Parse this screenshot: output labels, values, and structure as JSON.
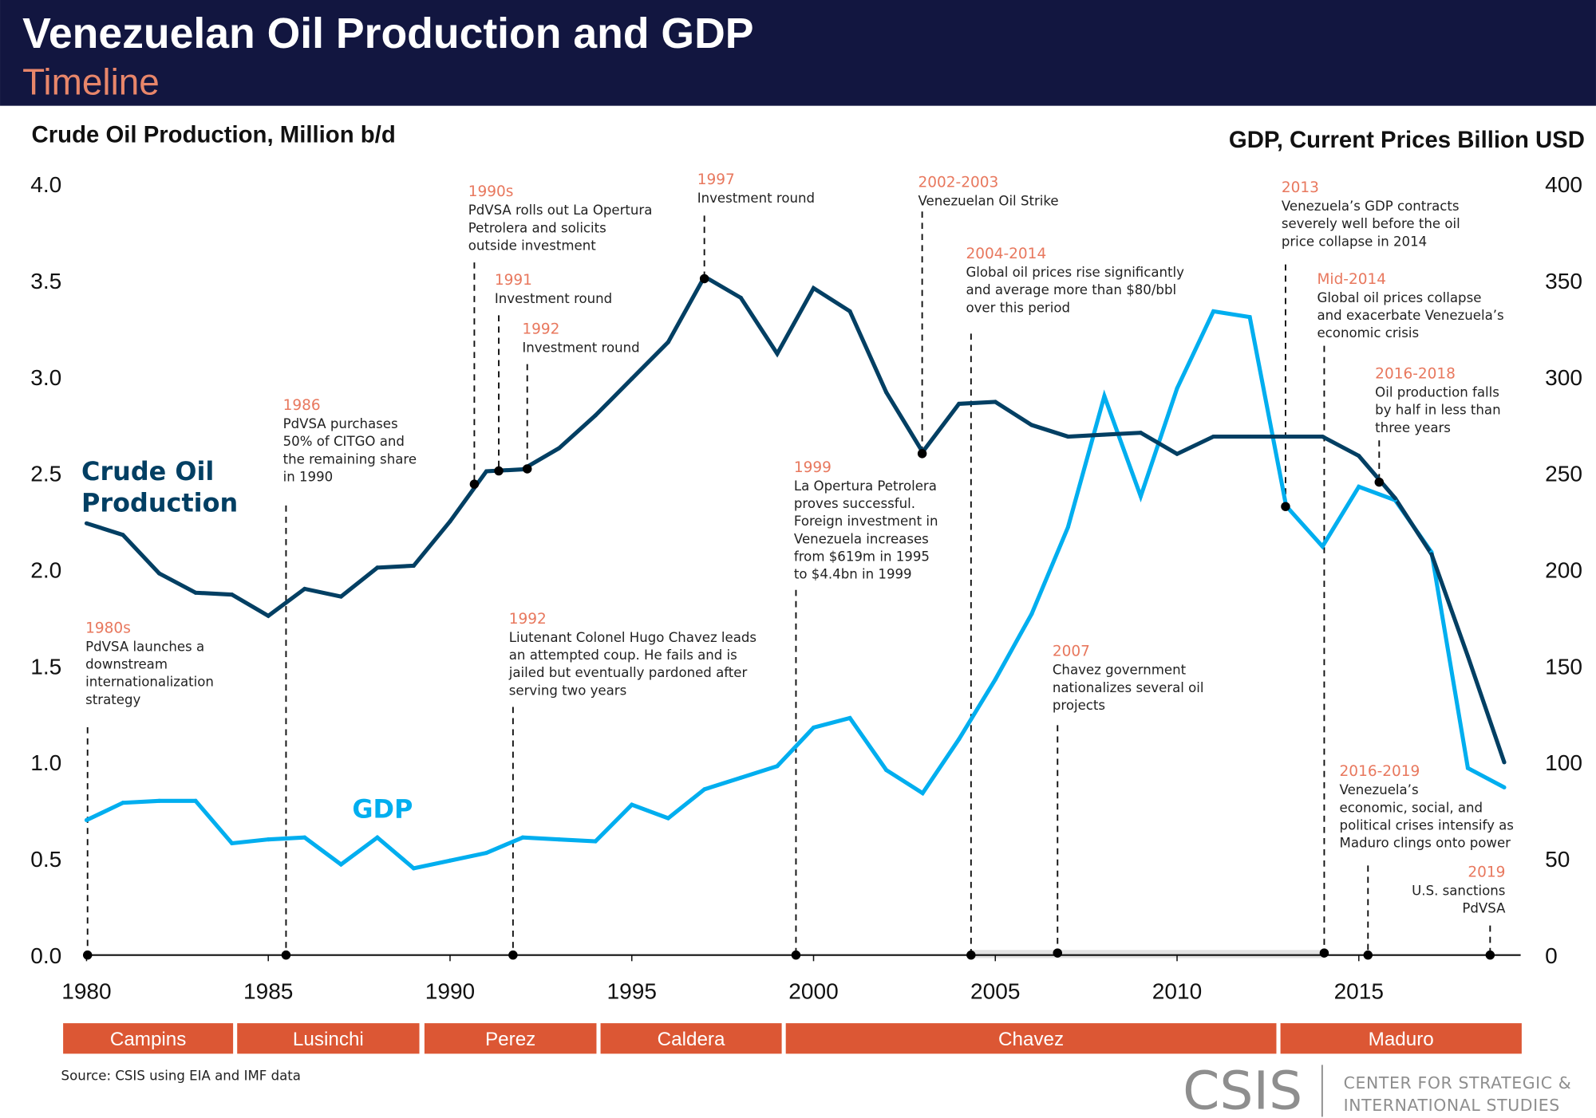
{
  "header": {
    "title": "Venezuelan Oil Production and GDP",
    "subtitle": "Timeline"
  },
  "colors": {
    "header_bg": "#121640",
    "subtitle": "#e8866a",
    "oil_series": "#023f63",
    "gdp_series": "#00aeef",
    "annotation_year": "#e8785e",
    "president_bar": "#dc5734",
    "period_band": "#e3e3e3"
  },
  "chart_data": {
    "type": "line",
    "left_axis_title": "Crude Oil Production, Million b/d",
    "right_axis_title": "GDP, Current Prices Billion USD",
    "x": [
      1980,
      1981,
      1982,
      1983,
      1984,
      1985,
      1986,
      1987,
      1988,
      1989,
      1990,
      1991,
      1992,
      1993,
      1994,
      1995,
      1996,
      1997,
      1998,
      1999,
      2000,
      2001,
      2002,
      2003,
      2004,
      2005,
      2006,
      2007,
      2008,
      2009,
      2010,
      2011,
      2012,
      2013,
      2014,
      2015,
      2016,
      2017,
      2018,
      2019
    ],
    "x_ticks": [
      "1980",
      "1985",
      "1990",
      "1995",
      "2000",
      "2005",
      "2010",
      "2015"
    ],
    "x_tick_values": [
      1980,
      1985,
      1990,
      1995,
      2000,
      2005,
      2010,
      2015
    ],
    "left_ticks": [
      "0.0",
      "0.5",
      "1.0",
      "1.5",
      "2.0",
      "2.5",
      "3.0",
      "3.5",
      "4.0"
    ],
    "right_ticks": [
      "0",
      "50",
      "100",
      "150",
      "200",
      "250",
      "300",
      "350",
      "400"
    ],
    "ylim_left": [
      0,
      4.0
    ],
    "ylim_right": [
      0,
      400
    ],
    "grid": false,
    "series": [
      {
        "name": "Crude Oil Production",
        "label": "Crude Oil Production",
        "axis": "left",
        "values": [
          2.24,
          2.18,
          1.98,
          1.88,
          1.87,
          1.76,
          1.9,
          1.86,
          2.01,
          2.02,
          2.25,
          2.51,
          2.52,
          2.63,
          2.8,
          2.99,
          3.18,
          3.52,
          3.41,
          3.12,
          3.46,
          3.34,
          2.92,
          2.61,
          2.86,
          2.87,
          2.75,
          2.69,
          2.7,
          2.71,
          2.6,
          2.69,
          2.69,
          2.69,
          2.69,
          2.59,
          2.37,
          2.08,
          1.55,
          1.0
        ]
      },
      {
        "name": "GDP",
        "label": "GDP",
        "axis": "right",
        "values": [
          70,
          79,
          80,
          80,
          58,
          60,
          61,
          47,
          61,
          45,
          49,
          53,
          61,
          60,
          59,
          78,
          71,
          86,
          92,
          98,
          118,
          123,
          96,
          84,
          112,
          143,
          177,
          222,
          290,
          238,
          294,
          334,
          331,
          233,
          212,
          243,
          236,
          209,
          97,
          87
        ]
      }
    ]
  },
  "annotations": [
    {
      "year": "1980s",
      "lines": [
        "PdVSA launches a",
        "downstream",
        "internationalization",
        "strategy"
      ]
    },
    {
      "year": "1986",
      "lines": [
        "PdVSA purchases",
        "50% of CITGO and",
        "the remaining share",
        "in 1990"
      ]
    },
    {
      "year": "1990s",
      "lines": [
        "PdVSA rolls out La Opertura",
        "Petrolera and solicits",
        "outside investment"
      ]
    },
    {
      "year": "1991",
      "lines": [
        "Investment round"
      ]
    },
    {
      "year": "1992",
      "lines": [
        "Investment round"
      ]
    },
    {
      "year": "1997",
      "lines": [
        "Investment round"
      ]
    },
    {
      "year": "1992",
      "lines": [
        "Liutenant Colonel Hugo Chavez leads",
        "an attempted coup. He fails and is",
        "jailed but eventually pardoned after",
        "serving two years"
      ]
    },
    {
      "year": "1999",
      "lines": [
        "La Opertura Petrolera",
        "proves successful.",
        "Foreign investment in",
        "Venezuela increases",
        "from $619m in 1995",
        "to $4.4bn in 1999"
      ]
    },
    {
      "year": "2002-2003",
      "lines": [
        "Venezuelan Oil Strike"
      ]
    },
    {
      "year": "2004-2014",
      "lines": [
        "Global oil prices rise significantly",
        "and average more than $80/bbl",
        "over this period"
      ]
    },
    {
      "year": "2007",
      "lines": [
        "Chavez government",
        "nationalizes several oil",
        "projects"
      ]
    },
    {
      "year": "2013",
      "lines": [
        "Venezuela’s GDP contracts",
        "severely well before the oil",
        "price collapse in 2014"
      ]
    },
    {
      "year": "Mid-2014",
      "lines": [
        "Global oil prices collapse",
        "and exacerbate Venezuela’s",
        "economic crisis"
      ]
    },
    {
      "year": "2016-2018",
      "lines": [
        "Oil production falls",
        "by half in less than",
        "three years"
      ]
    },
    {
      "year": "2016-2019",
      "lines": [
        "Venezuela’s",
        "economic, social, and",
        "political crises intensify as",
        "Maduro clings onto power"
      ]
    },
    {
      "year": "2019",
      "lines": [
        "U.S. sanctions",
        "PdVSA"
      ]
    }
  ],
  "presidents": [
    "Campins",
    "Lusinchi",
    "Perez",
    "Caldera",
    "Chavez",
    "Maduro"
  ],
  "footer": {
    "source": "Source: CSIS using EIA and IMF data",
    "logo_mark": "CSIS",
    "logo_line1": "CENTER FOR STRATEGIC &",
    "logo_line2": "INTERNATIONAL STUDIES"
  }
}
